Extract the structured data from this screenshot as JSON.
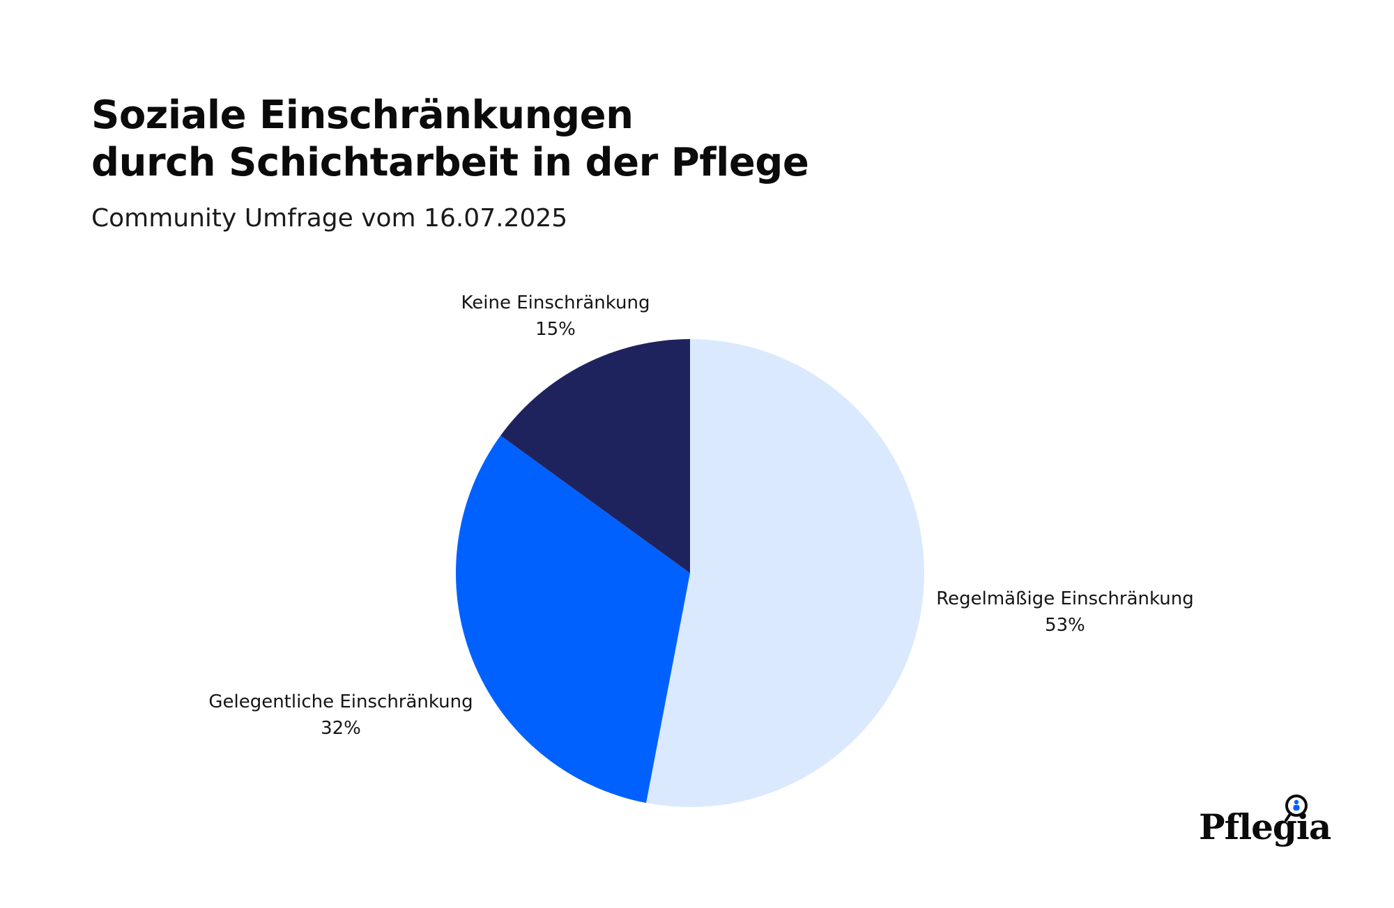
{
  "chart_data": {
    "type": "pie",
    "title_lines": [
      "Soziale Einschränkungen",
      "durch Schichtarbeit in der Pflege"
    ],
    "subtitle": "Community Umfrage vom 16.07.2025",
    "slices": [
      {
        "label": "Regelmäßige Einschränkung",
        "value": 53,
        "value_text": "53%",
        "color": "#dbe9fe"
      },
      {
        "label": "Gelegentliche Einschränkung",
        "value": 32,
        "value_text": "32%",
        "color": "#0061fe"
      },
      {
        "label": "Keine Einschränkung",
        "value": 15,
        "value_text": "15%",
        "color": "#1f235d"
      }
    ],
    "start": "12 o'clock",
    "direction": "clockwise"
  },
  "brand": {
    "name": "Pflegia",
    "logo_icon": "magnifier-person-icon"
  },
  "colors": {
    "background": "#ffffff",
    "text": "#111111"
  }
}
